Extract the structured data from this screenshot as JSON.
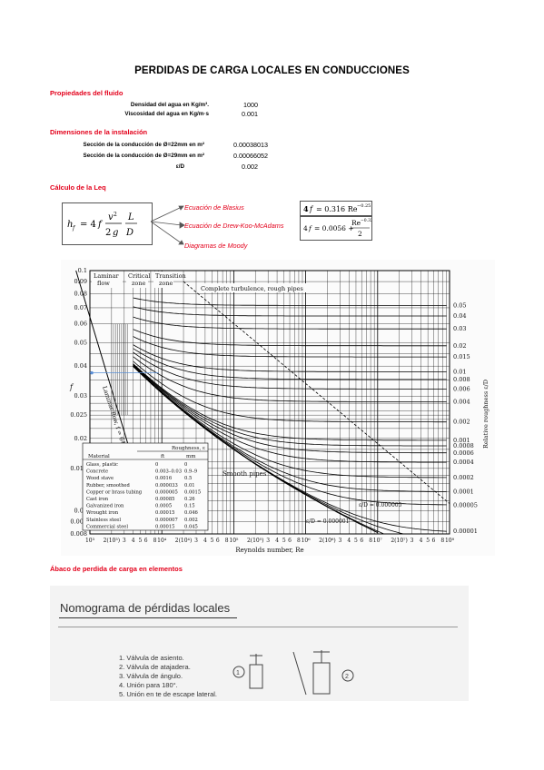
{
  "title": "PERDIDAS DE CARGA LOCALES EN CONDUCCIONES",
  "fluid": {
    "heading": "Propiedades del fluido",
    "rows": [
      {
        "label": "Densidad del agua en Kg/m³.",
        "value": "1000"
      },
      {
        "label": "Viscosidad del agua en Kg/m·s",
        "value": "0.001"
      }
    ]
  },
  "install": {
    "heading": "Dimensiones de la instalación",
    "rows": [
      {
        "label": "Sección de la conducción de Ø=22mm en m²",
        "value": "0.00038013"
      },
      {
        "label": "Sección de la conducción de Ø=29mm en  m²",
        "value": "0.00066052"
      },
      {
        "label": "ε/D",
        "value": "0.002"
      }
    ]
  },
  "leq": {
    "heading": "Cálculo de la Leq",
    "eq_main": "hf = 4 f (v² / 2 g) (L / D)",
    "links": [
      "Ecuación de Blasius",
      "Ecuación de Drew-Koo-McAdams",
      "Diagramas de Moody"
    ],
    "blasius_formula": "4 f = 0.316 Re^-0.25",
    "drew_formula": "4f = 0.0056 + Re^-0.32 / 2"
  },
  "moody": {
    "left_ticks": [
      "0.1",
      "0.09",
      "0.08",
      "0.07",
      "0.06",
      "0.05",
      "0.04",
      "0.03",
      "0.025",
      "0.02",
      "0.015",
      "0.01",
      "0.009",
      "0.008"
    ],
    "right_ticks": [
      "0.05",
      "0.04",
      "0.03",
      "0.02",
      "0.015",
      "0.01",
      "0.008",
      "0.006",
      "0.004",
      "0.002",
      "0.001",
      "0.0008",
      "0.0006",
      "0.0004",
      "0.0002",
      "0.0001",
      "0.00005",
      "0.00001"
    ],
    "x_ticks": [
      "10³",
      "2(10³)",
      "3",
      "4",
      "5",
      "6",
      "8",
      "10⁴",
      "2(10⁴)",
      "3",
      "4",
      "5",
      "6",
      "8",
      "10⁵",
      "2(10⁵)",
      "3",
      "4",
      "5",
      "6",
      "8",
      "10⁶",
      "2(10⁶)",
      "3",
      "4",
      "5",
      "6",
      "8",
      "10⁷",
      "2(10⁷)",
      "3",
      "4",
      "5",
      "6",
      "8",
      "10⁸"
    ],
    "xlabel": "Reynolds number, Re",
    "ylabel": "f",
    "right_label": "Relative roughness ε/D",
    "zone_laminar": "Laminar flow",
    "zone_critical": "Critical zone",
    "zone_transition": "Transition zone",
    "zone_complete": "Complete turbulence, rough pipes",
    "laminar_line": "Laminar flow, f = 64/Re",
    "smooth": "Smooth pipes",
    "ed1": "ε/D = 0.000005",
    "ed2": "ε/D = 0.000001",
    "roughness_title": "Roughness, ε",
    "table_headers": [
      "Material",
      "ft",
      "mm"
    ],
    "table_rows": [
      [
        "Glass, plastic",
        "0",
        "0"
      ],
      [
        "Concrete",
        "0.003–0.03",
        "0.9–9"
      ],
      [
        "Wood stave",
        "0.0016",
        "0.5"
      ],
      [
        "Rubber, smoothed",
        "0.000033",
        "0.01"
      ],
      [
        "Copper or brass tubing",
        "0.000005",
        "0.0015"
      ],
      [
        "Cast iron",
        "0.00085",
        "0.26"
      ],
      [
        "Galvanized iron",
        "0.0005",
        "0.15"
      ],
      [
        "Wrought iron",
        "0.00015",
        "0.046"
      ],
      [
        "Stainless steel",
        "0.000007",
        "0.002"
      ],
      [
        "Commercial steel",
        "0.00015",
        "0.045"
      ]
    ]
  },
  "nomo": {
    "heading": "Ábaco de perdida de carga en elementos",
    "title": "Nomograma de pérdidas locales",
    "items": [
      "1. Válvula de asiento.",
      "2. Válvula de atajadera.",
      "3. Válvula de ángulo.",
      "4. Unión para 180°.",
      "5. Unión en te de escape lateral."
    ],
    "markers": [
      "1",
      "2"
    ]
  },
  "colors": {
    "accent": "#e3001b",
    "link": "#e3001b"
  }
}
